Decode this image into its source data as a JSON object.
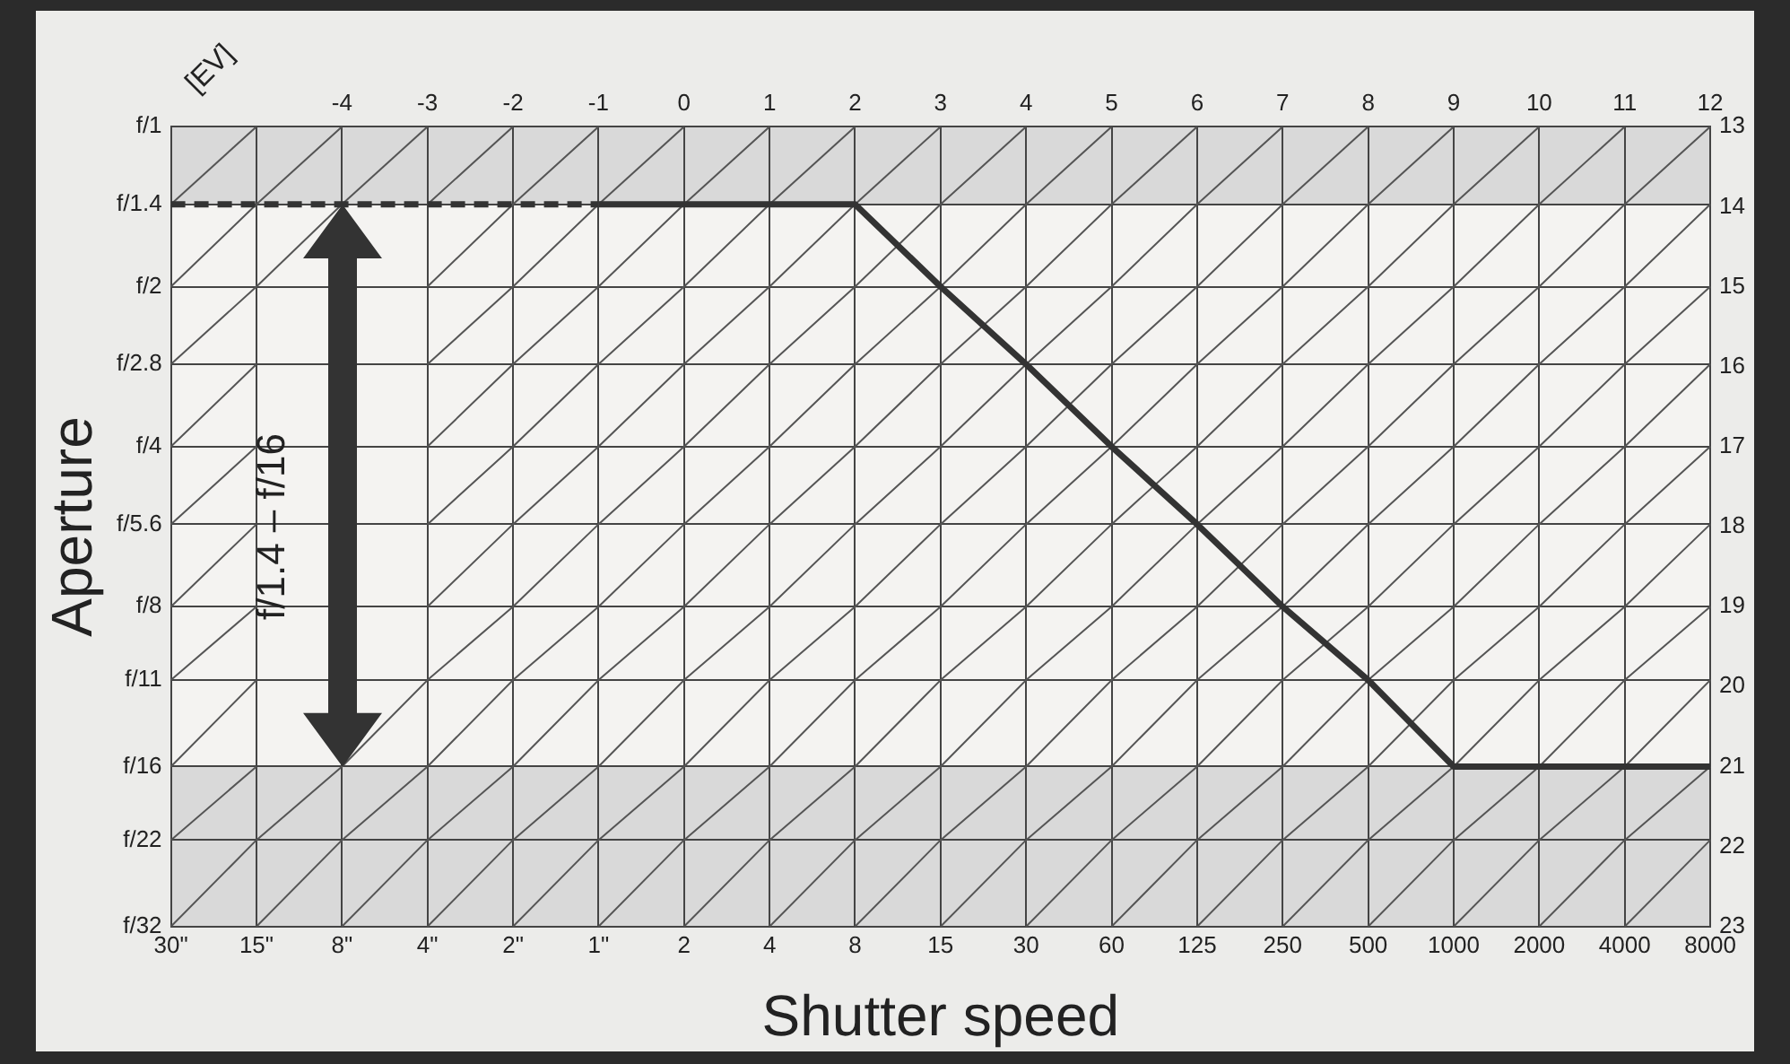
{
  "chart_data": {
    "type": "line",
    "xlabel": "Shutter speed",
    "ylabel": "Aperture",
    "x2label": "[EV]",
    "categories": [
      "30\"",
      "15\"",
      "8\"",
      "4\"",
      "2\"",
      "1\"",
      "2",
      "4",
      "8",
      "15",
      "30",
      "60",
      "125",
      "250",
      "500",
      "1000",
      "2000",
      "4000",
      "8000"
    ],
    "log": "y",
    "ylim": [
      32,
      1
    ],
    "yticks": [
      {
        "value": 1,
        "label": "f/1"
      },
      {
        "value": 1.4,
        "label": "f/1.4"
      },
      {
        "value": 2,
        "label": "f/2"
      },
      {
        "value": 2.8,
        "label": "f/2.8"
      },
      {
        "value": 4,
        "label": "f/4"
      },
      {
        "value": 5.6,
        "label": "f/5.6"
      },
      {
        "value": 8,
        "label": "f/8"
      },
      {
        "value": 11,
        "label": "f/11"
      },
      {
        "value": 16,
        "label": "f/16"
      },
      {
        "value": 22,
        "label": "f/22"
      },
      {
        "value": 32,
        "label": "f/32"
      }
    ],
    "x2lim": [
      -6,
      12
    ],
    "x2ticks": [
      -4,
      -3,
      -2,
      -1,
      0,
      1,
      2,
      3,
      4,
      5,
      6,
      7,
      8,
      9,
      10,
      11,
      12
    ],
    "y2lim": [
      23,
      13
    ],
    "y2ticks": [
      13,
      14,
      15,
      16,
      17,
      18,
      19,
      20,
      21,
      22,
      23
    ],
    "series": [
      {
        "values": [
          1.4,
          1,
          null,
          null,
          null,
          null,
          null,
          null,
          null,
          null,
          null,
          null,
          null,
          null,
          null,
          null,
          null,
          null,
          null
        ],
        "color": "#555555"
      },
      {
        "values": [
          2,
          1.4,
          1,
          null,
          null,
          null,
          null,
          null,
          null,
          null,
          null,
          null,
          null,
          null,
          null,
          null,
          null,
          null,
          null
        ],
        "color": "#555555"
      },
      {
        "values": [
          2.8,
          2,
          1.4,
          1,
          null,
          null,
          null,
          null,
          null,
          null,
          null,
          null,
          null,
          null,
          null,
          null,
          null,
          null,
          null
        ],
        "color": "#555555"
      },
      {
        "values": [
          4,
          2.8,
          null,
          1.4,
          1,
          null,
          null,
          null,
          null,
          null,
          null,
          null,
          null,
          null,
          null,
          null,
          null,
          null,
          null
        ],
        "color": "#555555"
      },
      {
        "values": [
          5.6,
          4,
          null,
          2,
          1.4,
          1,
          null,
          null,
          null,
          null,
          null,
          null,
          null,
          null,
          null,
          null,
          null,
          null,
          null
        ],
        "color": "#555555"
      },
      {
        "values": [
          8,
          5.6,
          null,
          2.8,
          2,
          1.4,
          1,
          null,
          null,
          null,
          null,
          null,
          null,
          null,
          null,
          null,
          null,
          null,
          null
        ],
        "color": "#555555"
      },
      {
        "values": [
          11,
          8,
          null,
          4,
          2.8,
          2,
          1.4,
          1,
          null,
          null,
          null,
          null,
          null,
          null,
          null,
          null,
          null,
          null,
          null
        ],
        "color": "#555555"
      },
      {
        "values": [
          16,
          11,
          null,
          5.6,
          4,
          2.8,
          2,
          1.4,
          1,
          null,
          null,
          null,
          null,
          null,
          null,
          null,
          null,
          null,
          null
        ],
        "color": "#555555"
      },
      {
        "values": [
          22,
          16,
          null,
          8,
          5.6,
          4,
          2.8,
          2,
          1.4,
          1,
          null,
          null,
          null,
          null,
          null,
          null,
          null,
          null,
          null
        ],
        "color": "#555555"
      },
      {
        "values": [
          32,
          22,
          16,
          11,
          8,
          5.6,
          4,
          2.8,
          2,
          1.4,
          1,
          null,
          null,
          null,
          null,
          null,
          null,
          null,
          null
        ],
        "color": "#555555"
      },
      {
        "values": [
          null,
          32,
          22,
          16,
          11,
          8,
          5.6,
          4,
          2.8,
          2,
          1.4,
          1,
          null,
          null,
          null,
          null,
          null,
          null,
          null
        ],
        "color": "#555555"
      },
      {
        "values": [
          null,
          null,
          32,
          22,
          16,
          11,
          8,
          5.6,
          4,
          2.8,
          2,
          1.4,
          1,
          null,
          null,
          null,
          null,
          null,
          null
        ],
        "color": "#555555"
      },
      {
        "values": [
          null,
          null,
          null,
          32,
          22,
          16,
          11,
          8,
          5.6,
          4,
          2.8,
          2,
          1.4,
          1,
          null,
          null,
          null,
          null,
          null
        ],
        "color": "#555555"
      },
      {
        "values": [
          null,
          null,
          null,
          null,
          32,
          22,
          16,
          11,
          8,
          5.6,
          4,
          2.8,
          2,
          1.4,
          1,
          null,
          null,
          null,
          null
        ],
        "color": "#555555"
      },
      {
        "values": [
          null,
          null,
          null,
          null,
          null,
          32,
          22,
          16,
          11,
          8,
          5.6,
          4,
          2.8,
          2,
          1.4,
          1,
          null,
          null,
          null
        ],
        "color": "#555555"
      },
      {
        "values": [
          null,
          null,
          null,
          null,
          null,
          null,
          32,
          22,
          16,
          11,
          8,
          5.6,
          4,
          2.8,
          2,
          1.4,
          1,
          null,
          null
        ],
        "color": "#555555"
      },
      {
        "values": [
          null,
          null,
          null,
          null,
          null,
          null,
          null,
          32,
          22,
          16,
          11,
          8,
          5.6,
          4,
          2.8,
          2,
          1.4,
          1,
          null
        ],
        "color": "#555555"
      },
      {
        "values": [
          null,
          null,
          null,
          null,
          null,
          null,
          null,
          null,
          32,
          22,
          16,
          11,
          8,
          5.6,
          4,
          2.8,
          2,
          1.4,
          1
        ],
        "color": "#555555"
      },
      {
        "values": [
          null,
          null,
          null,
          null,
          null,
          null,
          null,
          null,
          null,
          32,
          22,
          16,
          11,
          8,
          5.6,
          4,
          2.8,
          2,
          1.4
        ],
        "color": "#555555"
      },
      {
        "values": [
          null,
          null,
          null,
          null,
          null,
          null,
          null,
          null,
          null,
          null,
          32,
          22,
          16,
          11,
          8,
          5.6,
          4,
          2.8,
          2
        ],
        "color": "#555555"
      },
      {
        "values": [
          null,
          null,
          null,
          null,
          null,
          null,
          null,
          null,
          null,
          null,
          null,
          32,
          22,
          16,
          11,
          8,
          5.6,
          4,
          2.8
        ],
        "color": "#555555"
      },
      {
        "values": [
          null,
          null,
          null,
          null,
          null,
          null,
          null,
          null,
          null,
          null,
          null,
          null,
          32,
          22,
          16,
          11,
          8,
          5.6,
          4
        ],
        "color": "#555555"
      },
      {
        "values": [
          null,
          null,
          null,
          null,
          null,
          null,
          null,
          null,
          null,
          null,
          null,
          null,
          null,
          32,
          22,
          16,
          11,
          8,
          5.6
        ],
        "color": "#555555"
      },
      {
        "values": [
          null,
          null,
          null,
          null,
          null,
          null,
          null,
          null,
          null,
          null,
          null,
          null,
          null,
          null,
          32,
          22,
          16,
          11,
          8
        ],
        "color": "#555555"
      },
      {
        "values": [
          null,
          null,
          null,
          null,
          null,
          null,
          null,
          null,
          null,
          null,
          null,
          null,
          null,
          null,
          null,
          32,
          22,
          16,
          11
        ],
        "color": "#555555"
      },
      {
        "values": [
          null,
          null,
          null,
          null,
          null,
          null,
          null,
          null,
          null,
          null,
          null,
          null,
          null,
          null,
          null,
          null,
          32,
          22,
          16
        ],
        "color": "#555555"
      },
      {
        "values": [
          null,
          null,
          null,
          null,
          null,
          null,
          null,
          null,
          null,
          null,
          null,
          null,
          null,
          null,
          null,
          null,
          null,
          32,
          22
        ],
        "color": "#555555"
      },
      {
        "values": [
          1.4,
          1.4,
          1.4,
          1.4,
          1.4,
          1.4,
          null,
          null,
          null,
          null,
          null,
          null,
          null,
          null,
          null,
          null,
          null,
          null,
          null
        ],
        "color": "#333333",
        "line_style": "dashed"
      },
      {
        "values": [
          null,
          null,
          null,
          null,
          null,
          1.4,
          1.4,
          1.4,
          1.4,
          2,
          2.8,
          4,
          5.6,
          8,
          11,
          16,
          16,
          16,
          16
        ],
        "color": "#333333",
        "line_style": "solid"
      }
    ],
    "bands": [
      {
        "axis": "y",
        "from": 1,
        "to": 1.4,
        "color": "#d9d9d9"
      },
      {
        "axis": "y",
        "from": 16,
        "to": 32,
        "color": "#d9d9d9"
      }
    ],
    "annotations": [
      "f/1.4 – f/16"
    ],
    "grid": true,
    "marker": "none"
  }
}
